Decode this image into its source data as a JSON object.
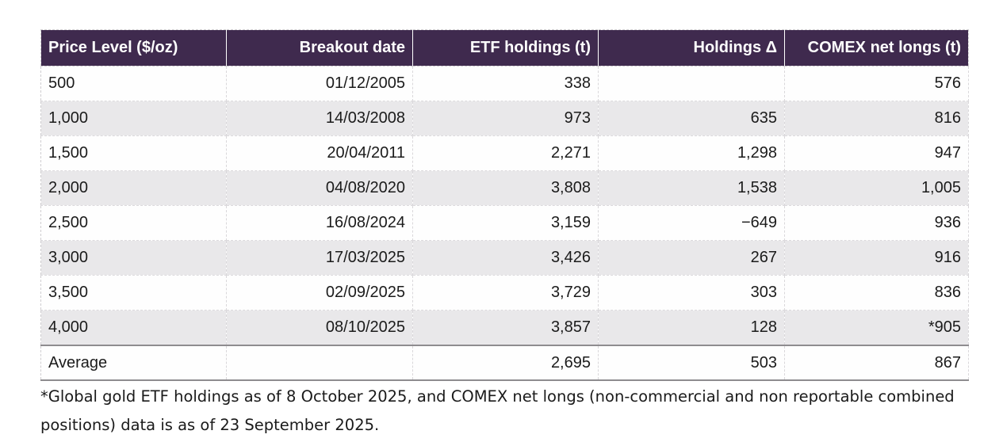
{
  "table": {
    "columns": [
      "Price Level ($/oz)",
      "Breakout date",
      "ETF holdings (t)",
      "Holdings Δ",
      "COMEX net longs (t)"
    ],
    "rows": [
      {
        "cells": [
          "500",
          "01/12/2005",
          "338",
          "",
          "576"
        ]
      },
      {
        "cells": [
          "1,000",
          "14/03/2008",
          "973",
          "635",
          "816"
        ]
      },
      {
        "cells": [
          "1,500",
          "20/04/2011",
          "2,271",
          "1,298",
          "947"
        ]
      },
      {
        "cells": [
          "2,000",
          "04/08/2020",
          "3,808",
          "1,538",
          "1,005"
        ]
      },
      {
        "cells": [
          "2,500",
          "16/08/2024",
          "3,159",
          "−649",
          "936"
        ]
      },
      {
        "cells": [
          "3,000",
          "17/03/2025",
          "3,426",
          "267",
          "916"
        ]
      },
      {
        "cells": [
          "3,500",
          "02/09/2025",
          "3,729",
          "303",
          "836"
        ]
      },
      {
        "cells": [
          "4,000",
          "08/10/2025",
          "3,857",
          "128",
          "*905"
        ]
      },
      {
        "cells": [
          "Average",
          "",
          "2,695",
          "503",
          "867"
        ]
      }
    ]
  },
  "footnote": "*Global gold ETF holdings as of 8 October 2025, and COMEX net longs (non-commercial and non reportable combined positions) data is as of 23 September 2025.",
  "colors": {
    "header_bg": "#3f2a4e",
    "stripe": "#e9e8ea",
    "solid_rule": "#8e8c8f"
  }
}
